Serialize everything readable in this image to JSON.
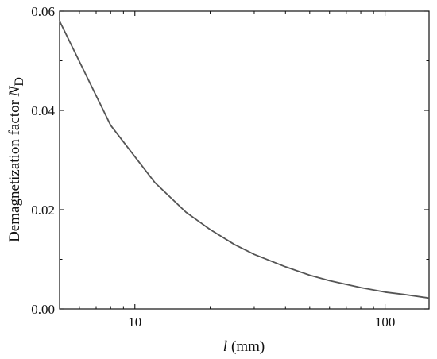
{
  "chart_data": {
    "type": "line",
    "x_scale": "log",
    "xlim": [
      5,
      150
    ],
    "ylim": [
      0,
      0.06
    ],
    "grid": false,
    "x_ticks": [
      {
        "value": 10,
        "label": "10"
      },
      {
        "value": 100,
        "label": "100"
      }
    ],
    "y_ticks": [
      {
        "value": 0.0,
        "label": "0.00"
      },
      {
        "value": 0.02,
        "label": "0.02"
      },
      {
        "value": 0.04,
        "label": "0.04"
      },
      {
        "value": 0.06,
        "label": "0.06"
      }
    ],
    "xlabel": {
      "symbol": "l",
      "unit": "(mm)"
    },
    "ylabel": {
      "text": "Demagnetization factor ",
      "symbol": "N",
      "subscript": "D"
    },
    "series": [
      {
        "color": "#555555",
        "x": [
          5,
          8,
          12,
          16,
          20,
          25,
          30,
          40,
          50,
          60,
          80,
          100,
          120,
          150
        ],
        "y": [
          0.058,
          0.037,
          0.0255,
          0.0195,
          0.016,
          0.013,
          0.011,
          0.0085,
          0.0068,
          0.0057,
          0.0043,
          0.0034,
          0.0029,
          0.0022
        ]
      }
    ]
  }
}
